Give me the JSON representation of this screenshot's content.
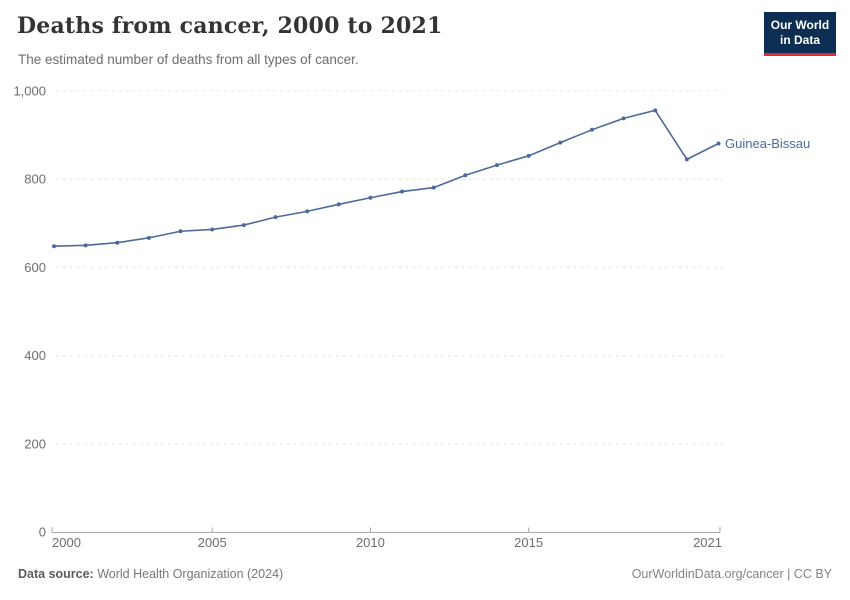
{
  "header": {
    "title": "Deaths from cancer, 2000 to 2021",
    "subtitle": "The estimated number of deaths from all types of cancer.",
    "logo": {
      "line1": "Our World",
      "line2": "in Data"
    }
  },
  "chart_data": {
    "type": "line",
    "title": "Deaths from cancer, 2000 to 2021",
    "subtitle": "The estimated number of deaths from all types of cancer.",
    "xlabel": "",
    "ylabel": "",
    "xlim": [
      2000,
      2021
    ],
    "ylim": [
      0,
      1000
    ],
    "grid": "horizontal-dashed",
    "legend_position": "end-of-line-label",
    "x_ticks": [
      2000,
      2005,
      2010,
      2015,
      2021
    ],
    "x_tick_labels": [
      "2000",
      "2005",
      "2010",
      "2015",
      "2021"
    ],
    "y_ticks": [
      0,
      200,
      400,
      600,
      800,
      1000
    ],
    "y_tick_labels": [
      "0",
      "200",
      "400",
      "600",
      "800",
      "1,000"
    ],
    "x": [
      2000,
      2001,
      2002,
      2003,
      2004,
      2005,
      2006,
      2007,
      2008,
      2009,
      2010,
      2011,
      2012,
      2013,
      2014,
      2015,
      2016,
      2017,
      2018,
      2019,
      2020,
      2021
    ],
    "series": [
      {
        "name": "Guinea-Bissau",
        "color": "#4C6A9C",
        "values": [
          648,
          650,
          656,
          667,
          682,
          686,
          696,
          714,
          727,
          743,
          758,
          772,
          781,
          809,
          832,
          853,
          883,
          912,
          938,
          956,
          845,
          881
        ]
      }
    ],
    "colors": {
      "gridline": "#e0e0e0",
      "axis_line": "#a8a8a8",
      "tick_label": "#6e6e6e"
    }
  },
  "footer": {
    "datasource_label": "Data source:",
    "datasource_value": "World Health Organization (2024)",
    "credit": "OurWorldinData.org/cancer | CC BY"
  }
}
